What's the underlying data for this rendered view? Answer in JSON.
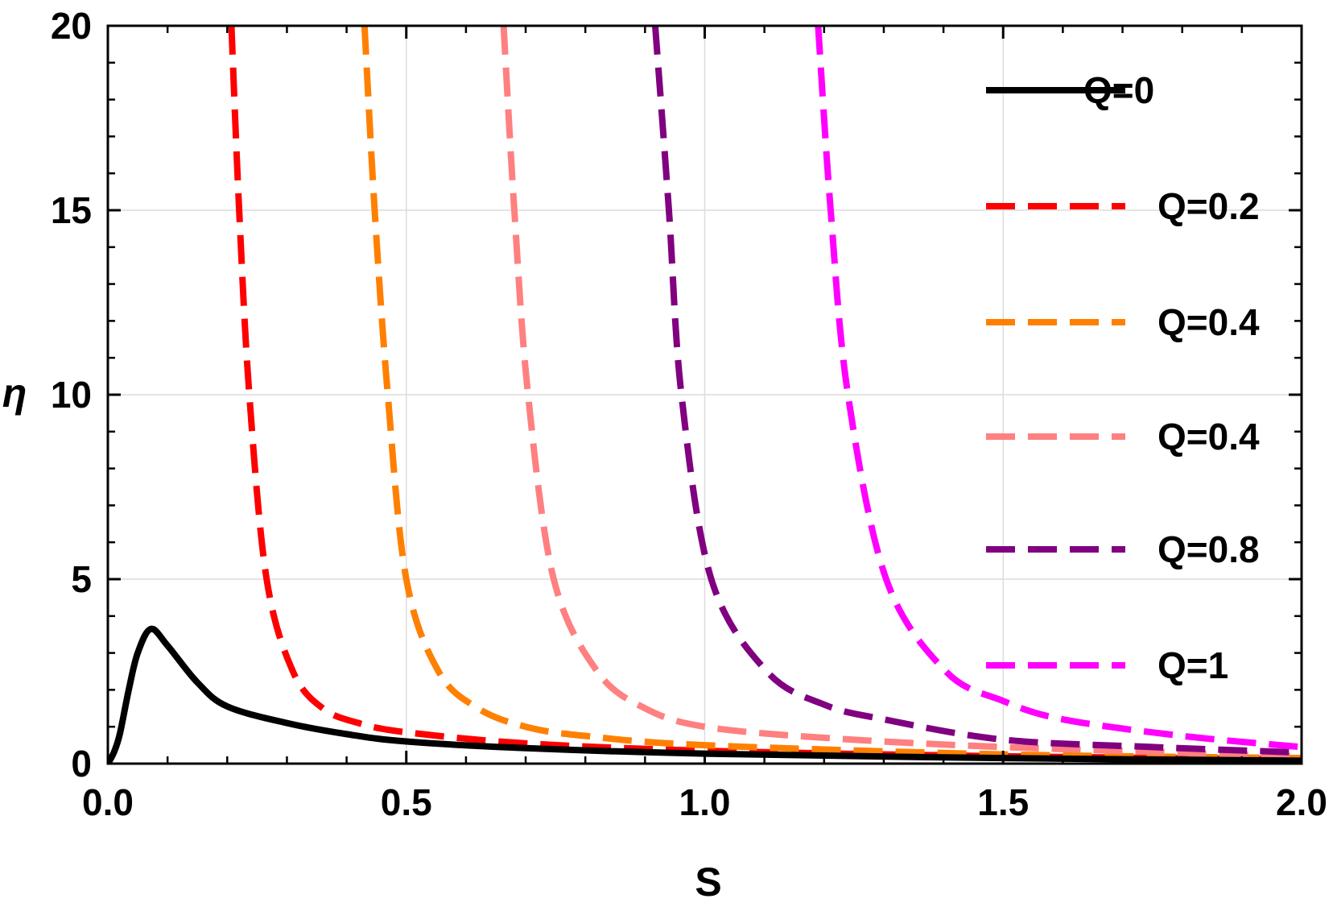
{
  "chart_data": {
    "type": "line",
    "title": "",
    "xlabel": "S",
    "ylabel": "η",
    "xlim": [
      0,
      2
    ],
    "ylim": [
      0,
      20
    ],
    "xticks": [
      "0.0",
      "0.5",
      "1.0",
      "1.5",
      "2.0"
    ],
    "yticks": [
      "0",
      "5",
      "10",
      "15",
      "20"
    ],
    "grid": true,
    "legend_placement": "right",
    "series": [
      {
        "name": "Q=0",
        "color": "#000000",
        "dash": "solid",
        "x": [
          0,
          0.01,
          0.02,
          0.035,
          0.05,
          0.072,
          0.1,
          0.15,
          0.2,
          0.3,
          0.4,
          0.5,
          0.7,
          1.0,
          1.5,
          2.0
        ],
        "y": [
          0,
          0.3,
          0.8,
          2.0,
          3.0,
          3.65,
          3.2,
          2.2,
          1.55,
          1.1,
          0.8,
          0.6,
          0.42,
          0.27,
          0.15,
          0.08
        ]
      },
      {
        "name": "Q=0.2",
        "color": "#ff0000",
        "dash": "dashed",
        "x": [
          0.207,
          0.22,
          0.237,
          0.266,
          0.31,
          0.36,
          0.42,
          0.5,
          0.7,
          1.0,
          1.5,
          2.0
        ],
        "y": [
          20,
          15,
          10,
          5,
          2.5,
          1.5,
          1.1,
          0.85,
          0.55,
          0.35,
          0.2,
          0.12
        ]
      },
      {
        "name": "Q=0.4",
        "color": "#ff8000",
        "dash": "dashed",
        "x": [
          0.43,
          0.447,
          0.469,
          0.5,
          0.554,
          0.62,
          0.7,
          0.8,
          1.0,
          1.5,
          2.0
        ],
        "y": [
          20,
          15,
          10,
          5,
          2.5,
          1.5,
          1.0,
          0.75,
          0.5,
          0.25,
          0.15
        ]
      },
      {
        "name": "Q=0.4",
        "color": "#ff8080",
        "dash": "dashed",
        "x": [
          0.663,
          0.681,
          0.704,
          0.747,
          0.82,
          0.9,
          1.0,
          1.2,
          1.5,
          2.0
        ],
        "y": [
          20,
          15,
          10,
          5,
          2.5,
          1.5,
          1.0,
          0.7,
          0.45,
          0.2
        ]
      },
      {
        "name": "Q=0.8",
        "color": "#800080",
        "dash": "dashed",
        "x": [
          0.917,
          0.94,
          0.961,
          1.011,
          1.104,
          1.2,
          1.3,
          1.5,
          1.75,
          2.0
        ],
        "y": [
          20,
          15,
          10,
          5,
          2.5,
          1.6,
          1.2,
          0.65,
          0.45,
          0.3
        ]
      },
      {
        "name": "Q=1",
        "color": "#ff00ff",
        "dash": "dashed",
        "x": [
          1.19,
          1.211,
          1.24,
          1.304,
          1.404,
          1.5,
          1.6,
          1.8,
          2.0
        ],
        "y": [
          20,
          15,
          10,
          5,
          2.5,
          1.7,
          1.2,
          0.75,
          0.45
        ]
      }
    ]
  }
}
